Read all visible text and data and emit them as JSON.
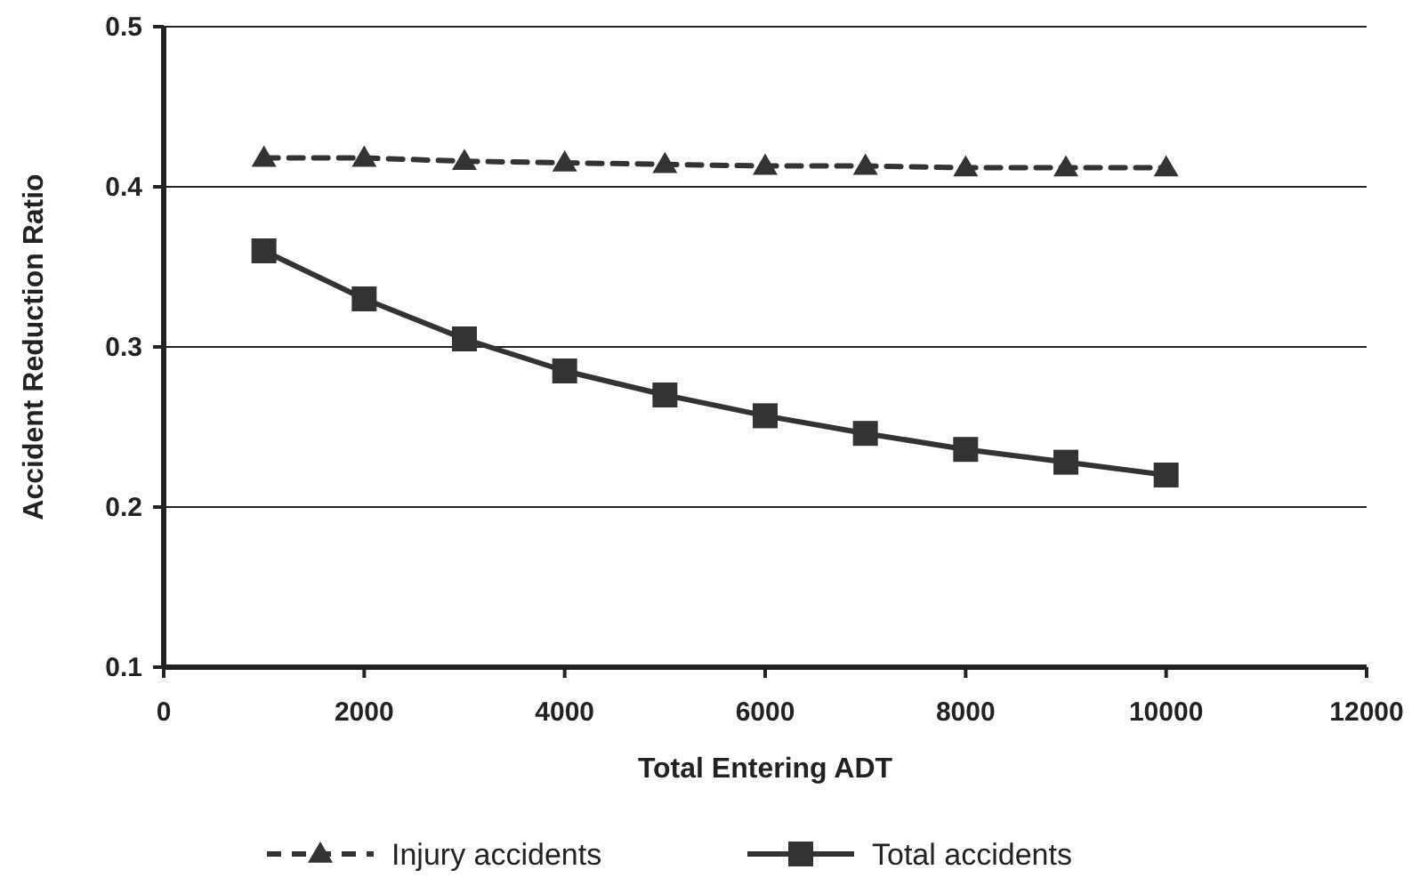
{
  "chart_data": {
    "type": "line",
    "xlabel": "Total Entering ADT",
    "ylabel": "Accident Reduction Ratio",
    "x": [
      1000,
      2000,
      3000,
      4000,
      5000,
      6000,
      7000,
      8000,
      9000,
      10000
    ],
    "series": [
      {
        "name": "Injury accidents",
        "color": "#333333",
        "marker": "triangle",
        "line_style": "dashed",
        "values": [
          0.418,
          0.418,
          0.416,
          0.415,
          0.414,
          0.413,
          0.413,
          0.412,
          0.412,
          0.412
        ]
      },
      {
        "name": "Total accidents",
        "color": "#333333",
        "marker": "square",
        "line_style": "solid",
        "values": [
          0.36,
          0.33,
          0.305,
          0.285,
          0.27,
          0.257,
          0.246,
          0.236,
          0.228,
          0.22
        ]
      }
    ],
    "xlim": [
      0,
      12000
    ],
    "xticks": [
      0,
      2000,
      4000,
      6000,
      8000,
      10000,
      12000
    ],
    "ylim": [
      0.1,
      0.5
    ],
    "yticks": [
      0.1,
      0.2,
      0.3,
      0.4,
      0.5
    ],
    "grid": "y",
    "legend": "bottom"
  }
}
